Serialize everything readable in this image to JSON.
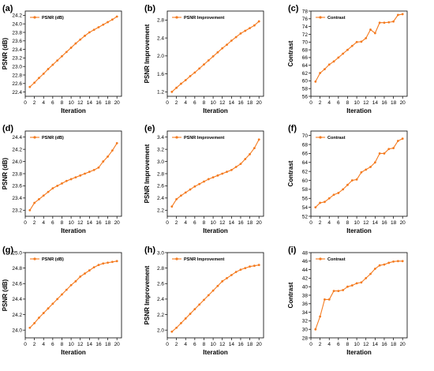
{
  "style": {
    "line_color": "#f47b20",
    "marker": "circle",
    "axis_color": "#000000"
  },
  "chart_data": [
    {
      "panel": "(a)",
      "type": "line",
      "xlabel": "Iteration",
      "ylabel": "PSNR (dB)",
      "xlim": [
        0,
        21
      ],
      "ylim": [
        22.3,
        24.3
      ],
      "xticks": [
        0,
        2,
        4,
        6,
        8,
        10,
        12,
        14,
        16,
        18,
        20
      ],
      "yticks": [
        22.4,
        22.6,
        22.8,
        23.0,
        23.2,
        23.4,
        23.6,
        23.8,
        24.0,
        24.2
      ],
      "ytick_decimals": 1,
      "legend": "top-left",
      "series": [
        {
          "name": "PSNR (dB)",
          "x": [
            1,
            2,
            3,
            4,
            5,
            6,
            7,
            8,
            9,
            10,
            11,
            12,
            13,
            14,
            15,
            16,
            17,
            18,
            19,
            20
          ],
          "y": [
            22.52,
            22.62,
            22.73,
            22.83,
            22.94,
            23.04,
            23.14,
            23.24,
            23.34,
            23.44,
            23.54,
            23.63,
            23.72,
            23.8,
            23.86,
            23.92,
            23.98,
            24.04,
            24.1,
            24.17
          ]
        }
      ]
    },
    {
      "panel": "(b)",
      "type": "line",
      "xlabel": "Iteration",
      "ylabel": "PSNR Improvement",
      "xlim": [
        0,
        21
      ],
      "ylim": [
        1.1,
        3.0
      ],
      "xticks": [
        0,
        2,
        4,
        6,
        8,
        10,
        12,
        14,
        16,
        18,
        20
      ],
      "yticks": [
        1.2,
        1.6,
        2.0,
        2.4,
        2.8
      ],
      "ytick_decimals": 1,
      "legend": "top-left",
      "series": [
        {
          "name": "PSNR Improvement",
          "x": [
            1,
            2,
            3,
            4,
            5,
            6,
            7,
            8,
            9,
            10,
            11,
            12,
            13,
            14,
            15,
            16,
            17,
            18,
            19,
            20
          ],
          "y": [
            1.2,
            1.29,
            1.38,
            1.46,
            1.55,
            1.63,
            1.72,
            1.81,
            1.9,
            1.99,
            2.08,
            2.17,
            2.25,
            2.34,
            2.42,
            2.5,
            2.56,
            2.62,
            2.68,
            2.77
          ]
        }
      ]
    },
    {
      "panel": "(c)",
      "type": "line",
      "xlabel": "Iteration",
      "ylabel": "Contrast",
      "xlim": [
        0,
        21
      ],
      "ylim": [
        56,
        78
      ],
      "xticks": [
        0,
        2,
        4,
        6,
        8,
        10,
        12,
        14,
        16,
        18,
        20
      ],
      "yticks": [
        56,
        58,
        60,
        62,
        64,
        66,
        68,
        70,
        72,
        74,
        76,
        78
      ],
      "ytick_decimals": 0,
      "legend": "top-left",
      "series": [
        {
          "name": "Contrast",
          "x": [
            1,
            2,
            3,
            4,
            5,
            6,
            7,
            8,
            9,
            10,
            11,
            12,
            13,
            14,
            15,
            16,
            17,
            18,
            19,
            20
          ],
          "y": [
            59.8,
            62.0,
            63.0,
            64.2,
            65.0,
            66.0,
            67.0,
            68.0,
            69.0,
            70.0,
            70.1,
            71.0,
            73.2,
            72.3,
            75.0,
            75.0,
            75.1,
            75.3,
            77.0,
            77.2
          ]
        }
      ]
    },
    {
      "panel": "(d)",
      "type": "line",
      "xlabel": "Iteration",
      "ylabel": "PSNR (dB)",
      "xlim": [
        0,
        21
      ],
      "ylim": [
        23.1,
        24.5
      ],
      "xticks": [
        0,
        2,
        4,
        6,
        8,
        10,
        12,
        14,
        16,
        18,
        20
      ],
      "yticks": [
        23.2,
        23.4,
        23.6,
        23.8,
        24.0,
        24.2,
        24.4
      ],
      "ytick_decimals": 1,
      "legend": "top-left",
      "series": [
        {
          "name": "PSNR (dB)",
          "x": [
            1,
            2,
            3,
            4,
            5,
            6,
            7,
            8,
            9,
            10,
            11,
            12,
            13,
            14,
            15,
            16,
            17,
            18,
            19,
            20
          ],
          "y": [
            23.2,
            23.32,
            23.38,
            23.44,
            23.5,
            23.56,
            23.6,
            23.64,
            23.68,
            23.71,
            23.74,
            23.77,
            23.8,
            23.83,
            23.86,
            23.9,
            24.0,
            24.08,
            24.18,
            24.3
          ]
        }
      ]
    },
    {
      "panel": "(e)",
      "type": "line",
      "xlabel": "Iteration",
      "ylabel": "PSNR Improvement",
      "xlim": [
        0,
        21
      ],
      "ylim": [
        2.1,
        3.5
      ],
      "xticks": [
        0,
        2,
        4,
        6,
        8,
        10,
        12,
        14,
        16,
        18,
        20
      ],
      "yticks": [
        2.2,
        2.4,
        2.6,
        2.8,
        3.0,
        3.2,
        3.4
      ],
      "ytick_decimals": 1,
      "legend": "top-left",
      "series": [
        {
          "name": "PSNR Improvement",
          "x": [
            1,
            2,
            3,
            4,
            5,
            6,
            7,
            8,
            9,
            10,
            11,
            12,
            13,
            14,
            15,
            16,
            17,
            18,
            19,
            20
          ],
          "y": [
            2.26,
            2.38,
            2.44,
            2.49,
            2.54,
            2.59,
            2.63,
            2.67,
            2.71,
            2.74,
            2.77,
            2.8,
            2.83,
            2.86,
            2.91,
            2.96,
            3.04,
            3.12,
            3.22,
            3.36
          ]
        }
      ]
    },
    {
      "panel": "(f)",
      "type": "line",
      "xlabel": "Iteration",
      "ylabel": "Contrast",
      "xlim": [
        0,
        21
      ],
      "ylim": [
        52,
        71
      ],
      "xticks": [
        0,
        2,
        4,
        6,
        8,
        10,
        12,
        14,
        16,
        18,
        20
      ],
      "yticks": [
        52,
        54,
        56,
        58,
        60,
        62,
        64,
        66,
        68,
        70
      ],
      "ytick_decimals": 0,
      "legend": "top-left",
      "series": [
        {
          "name": "Contrast",
          "x": [
            1,
            2,
            3,
            4,
            5,
            6,
            7,
            8,
            9,
            10,
            11,
            12,
            13,
            14,
            15,
            16,
            17,
            18,
            19,
            20
          ],
          "y": [
            54.0,
            55.0,
            55.2,
            56.0,
            56.8,
            57.2,
            58.0,
            59.0,
            60.0,
            60.2,
            61.8,
            62.4,
            63.0,
            64.0,
            66.0,
            66.0,
            67.0,
            67.2,
            68.8,
            69.3
          ]
        }
      ]
    },
    {
      "panel": "(g)",
      "type": "line",
      "xlabel": "Iteration",
      "ylabel": "PSNR (dB)",
      "xlim": [
        0,
        21
      ],
      "ylim": [
        23.9,
        25.0
      ],
      "xticks": [
        0,
        2,
        4,
        6,
        8,
        10,
        12,
        14,
        16,
        18,
        20
      ],
      "yticks": [
        24.0,
        24.2,
        24.4,
        24.6,
        24.8,
        25.0
      ],
      "ytick_decimals": 1,
      "legend": "top-left",
      "series": [
        {
          "name": "PSNR (dB)",
          "x": [
            1,
            2,
            3,
            4,
            5,
            6,
            7,
            8,
            9,
            10,
            11,
            12,
            13,
            14,
            15,
            16,
            17,
            18,
            19,
            20
          ],
          "y": [
            24.03,
            24.09,
            24.16,
            24.22,
            24.28,
            24.34,
            24.4,
            24.46,
            24.52,
            24.58,
            24.63,
            24.69,
            24.73,
            24.77,
            24.81,
            24.84,
            24.86,
            24.87,
            24.88,
            24.89
          ]
        }
      ]
    },
    {
      "panel": "(h)",
      "type": "line",
      "xlabel": "Iteration",
      "ylabel": "PSNR Improvement",
      "xlim": [
        0,
        21
      ],
      "ylim": [
        1.9,
        3.0
      ],
      "xticks": [
        0,
        2,
        4,
        6,
        8,
        10,
        12,
        14,
        16,
        18,
        20
      ],
      "yticks": [
        2.0,
        2.2,
        2.4,
        2.6,
        2.8,
        3.0
      ],
      "ytick_decimals": 1,
      "legend": "top-left",
      "series": [
        {
          "name": "PSNR Improvement",
          "x": [
            1,
            2,
            3,
            4,
            5,
            6,
            7,
            8,
            9,
            10,
            11,
            12,
            13,
            14,
            15,
            16,
            17,
            18,
            19,
            20
          ],
          "y": [
            1.98,
            2.03,
            2.09,
            2.15,
            2.21,
            2.27,
            2.33,
            2.39,
            2.45,
            2.51,
            2.57,
            2.63,
            2.67,
            2.71,
            2.75,
            2.78,
            2.8,
            2.82,
            2.83,
            2.84
          ]
        }
      ]
    },
    {
      "panel": "(i)",
      "type": "line",
      "xlabel": "Iteration",
      "ylabel": "Contrast",
      "xlim": [
        0,
        21
      ],
      "ylim": [
        28,
        48
      ],
      "xticks": [
        0,
        2,
        4,
        6,
        8,
        10,
        12,
        14,
        16,
        18,
        20
      ],
      "yticks": [
        28,
        30,
        32,
        34,
        36,
        38,
        40,
        42,
        44,
        46,
        48
      ],
      "ytick_decimals": 0,
      "legend": "top-left",
      "series": [
        {
          "name": "Contrast",
          "x": [
            1,
            2,
            3,
            4,
            5,
            6,
            7,
            8,
            9,
            10,
            11,
            12,
            13,
            14,
            15,
            16,
            17,
            18,
            19,
            20
          ],
          "y": [
            30.0,
            33.0,
            37.0,
            37.0,
            39.0,
            39.0,
            39.2,
            40.0,
            40.3,
            40.8,
            41.0,
            42.0,
            43.0,
            44.2,
            45.0,
            45.2,
            45.6,
            45.9,
            46.0,
            46.0
          ]
        }
      ]
    }
  ]
}
